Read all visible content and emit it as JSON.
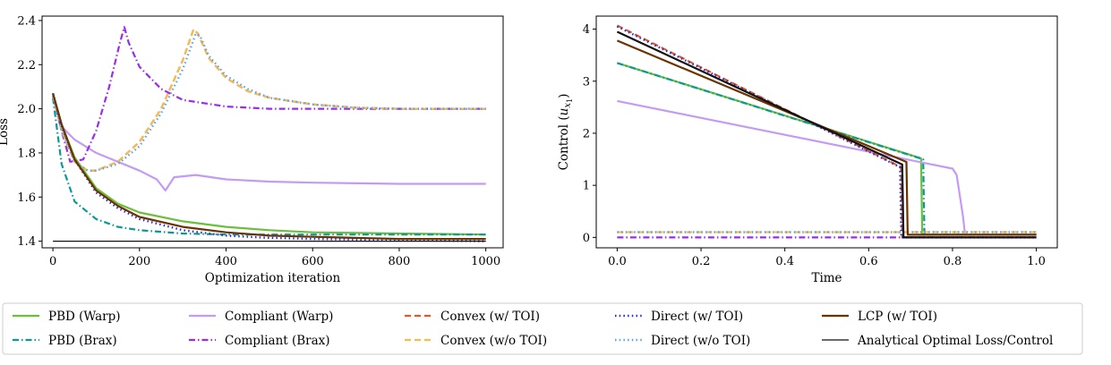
{
  "chart_data": [
    {
      "type": "line",
      "title": "",
      "xlabel": "Optimization iteration",
      "ylabel": "Loss",
      "xlim": [
        -25,
        1040
      ],
      "ylim": [
        1.37,
        2.42
      ],
      "xticks": [
        0,
        200,
        400,
        600,
        800,
        1000
      ],
      "yticks": [
        1.4,
        1.6,
        1.8,
        2.0,
        2.2,
        2.4
      ],
      "xtick_labels": [
        "0",
        "200",
        "400",
        "600",
        "800",
        "1000"
      ],
      "ytick_labels": [
        "1.4",
        "1.6",
        "1.8",
        "2.0",
        "2.2",
        "2.4"
      ],
      "series": [
        {
          "name": "PBD (Warp)",
          "color": "#6bbf3a",
          "style": "solid",
          "x": [
            0,
            20,
            50,
            100,
            150,
            200,
            300,
            400,
            500,
            600,
            800,
            1000
          ],
          "y": [
            2.07,
            1.93,
            1.78,
            1.64,
            1.57,
            1.53,
            1.49,
            1.465,
            1.45,
            1.44,
            1.435,
            1.43
          ]
        },
        {
          "name": "PBD (Brax)",
          "color": "#0a9a96",
          "style": "dashdot",
          "x": [
            0,
            20,
            50,
            100,
            150,
            200,
            300,
            400,
            600,
            800,
            1000
          ],
          "y": [
            2.05,
            1.75,
            1.58,
            1.5,
            1.465,
            1.45,
            1.435,
            1.43,
            1.43,
            1.43,
            1.43
          ]
        },
        {
          "name": "Compliant (Warp)",
          "color": "#c39bf5",
          "style": "solid",
          "x": [
            0,
            20,
            50,
            100,
            150,
            200,
            240,
            260,
            280,
            330,
            400,
            500,
            600,
            800,
            1000
          ],
          "y": [
            2.07,
            1.92,
            1.86,
            1.8,
            1.76,
            1.72,
            1.68,
            1.63,
            1.69,
            1.7,
            1.68,
            1.67,
            1.665,
            1.66,
            1.66
          ]
        },
        {
          "name": "Compliant (Brax)",
          "color": "#9a2ee8",
          "style": "dashdot",
          "x": [
            0,
            20,
            40,
            70,
            100,
            130,
            155,
            165,
            175,
            200,
            250,
            300,
            400,
            500,
            600,
            800,
            1000
          ],
          "y": [
            2.06,
            1.9,
            1.76,
            1.77,
            1.9,
            2.1,
            2.3,
            2.37,
            2.3,
            2.19,
            2.09,
            2.04,
            2.01,
            2.0,
            2.0,
            2.0,
            2.0
          ]
        },
        {
          "name": "Convex (w/ TOI)",
          "color": "#e05a28",
          "style": "dashed",
          "x": [
            0,
            20,
            50,
            80,
            100,
            150,
            200,
            250,
            300,
            325,
            335,
            360,
            400,
            450,
            500,
            600,
            700,
            800,
            1000
          ],
          "y": [
            2.06,
            1.9,
            1.76,
            1.72,
            1.72,
            1.76,
            1.85,
            2.0,
            2.22,
            2.36,
            2.34,
            2.23,
            2.14,
            2.08,
            2.05,
            2.02,
            2.005,
            2.0,
            2.0
          ]
        },
        {
          "name": "Convex (w/o TOI)",
          "color": "#f6bd4e",
          "style": "dashed",
          "x": [
            0,
            20,
            50,
            80,
            100,
            150,
            200,
            250,
            300,
            325,
            335,
            360,
            400,
            450,
            500,
            600,
            700,
            800,
            1000
          ],
          "y": [
            2.06,
            1.9,
            1.76,
            1.72,
            1.72,
            1.76,
            1.85,
            2.0,
            2.22,
            2.36,
            2.34,
            2.23,
            2.14,
            2.08,
            2.05,
            2.02,
            2.005,
            2.0,
            2.0
          ]
        },
        {
          "name": "Direct (w/ TOI)",
          "color": "#2b2bd6",
          "style": "dotted",
          "x": [
            0,
            20,
            50,
            100,
            150,
            200,
            300,
            400,
            500,
            600,
            800,
            1000
          ],
          "y": [
            2.07,
            1.92,
            1.77,
            1.62,
            1.55,
            1.5,
            1.45,
            1.425,
            1.415,
            1.41,
            1.405,
            1.4
          ]
        },
        {
          "name": "Direct (w/o TOI)",
          "color": "#5aa3e8",
          "style": "dotted",
          "x": [
            0,
            20,
            50,
            80,
            100,
            150,
            200,
            250,
            300,
            330,
            340,
            360,
            400,
            450,
            500,
            600,
            700,
            800,
            1000
          ],
          "y": [
            2.06,
            1.9,
            1.76,
            1.72,
            1.72,
            1.75,
            1.83,
            1.98,
            2.18,
            2.34,
            2.33,
            2.24,
            2.15,
            2.09,
            2.05,
            2.02,
            2.005,
            2.0,
            2.0
          ]
        },
        {
          "name": "LCP (w/ TOI)",
          "color": "#6b3300",
          "style": "solid",
          "x": [
            0,
            20,
            50,
            100,
            150,
            200,
            300,
            400,
            500,
            600,
            800,
            1000
          ],
          "y": [
            2.07,
            1.93,
            1.77,
            1.63,
            1.56,
            1.51,
            1.465,
            1.44,
            1.425,
            1.42,
            1.41,
            1.41
          ]
        },
        {
          "name": "Analytical Optimal Loss/Control",
          "color": "#111111",
          "style": "thin",
          "x": [
            0,
            1000
          ],
          "y": [
            1.4,
            1.4
          ]
        }
      ]
    },
    {
      "type": "line",
      "title": "",
      "xlabel": "Time",
      "ylabel": "Control (",
      "ylabel_symbol": "u",
      "ylabel_sub": "x",
      "ylabel_subsub": "1",
      "ylabel_close": ")",
      "xlim": [
        -0.05,
        1.05
      ],
      "ylim": [
        -0.2,
        4.25
      ],
      "xticks": [
        0.0,
        0.2,
        0.4,
        0.6,
        0.8,
        1.0
      ],
      "yticks": [
        0,
        1,
        2,
        3,
        4
      ],
      "xtick_labels": [
        "0.0",
        "0.2",
        "0.4",
        "0.6",
        "0.8",
        "1.0"
      ],
      "ytick_labels": [
        "0",
        "1",
        "2",
        "3",
        "4"
      ],
      "series": [
        {
          "name": "PBD (Warp)",
          "color": "#6bbf3a",
          "style": "solid",
          "x": [
            0,
            0.725,
            0.728,
            1.0
          ],
          "y": [
            3.35,
            1.52,
            0.05,
            0.05
          ]
        },
        {
          "name": "PBD (Brax)",
          "color": "#0a9a96",
          "style": "dashdot",
          "x": [
            0,
            0.73,
            0.733,
            1.0
          ],
          "y": [
            3.35,
            1.5,
            0.05,
            0.05
          ]
        },
        {
          "name": "Compliant (Warp)",
          "color": "#c39bf5",
          "style": "solid",
          "x": [
            0,
            0.8,
            0.81,
            0.825,
            0.83,
            1.0
          ],
          "y": [
            2.62,
            1.32,
            1.2,
            0.4,
            0.05,
            0.05
          ]
        },
        {
          "name": "Compliant (Brax)",
          "color": "#9a2ee8",
          "style": "dashdot",
          "x": [
            0,
            1.0
          ],
          "y": [
            0.0,
            0.0
          ]
        },
        {
          "name": "Convex (w/ TOI)",
          "color": "#e05a28",
          "style": "dashed",
          "x": [
            0,
            0.677,
            0.68,
            1.0
          ],
          "y": [
            4.07,
            1.35,
            0.0,
            0.0
          ]
        },
        {
          "name": "Convex (w/o TOI)",
          "color": "#f6bd4e",
          "style": "dashed",
          "x": [
            0,
            1.0
          ],
          "y": [
            0.1,
            0.1
          ]
        },
        {
          "name": "Direct (w/ TOI)",
          "color": "#2b2bd6",
          "style": "dotted",
          "x": [
            0,
            0.675,
            0.678,
            1.0
          ],
          "y": [
            4.05,
            1.35,
            0.0,
            0.0
          ]
        },
        {
          "name": "Direct (w/o TOI)",
          "color": "#5aa3e8",
          "style": "dotted",
          "x": [
            0,
            1.0
          ],
          "y": [
            0.1,
            0.1
          ]
        },
        {
          "name": "LCP (w/ TOI)",
          "color": "#6b3300",
          "style": "solid",
          "x": [
            0,
            0.69,
            0.693,
            1.0
          ],
          "y": [
            3.78,
            1.45,
            0.05,
            0.05
          ]
        },
        {
          "name": "Analytical Optimal Loss/Control",
          "color": "#111111",
          "style": "solid",
          "x": [
            0,
            0.68,
            0.683,
            1.0
          ],
          "y": [
            3.95,
            1.4,
            0.0,
            0.0
          ]
        }
      ]
    }
  ],
  "legend": {
    "placement": "bottom",
    "items": [
      {
        "label": "PBD (Warp)",
        "color": "#6bbf3a",
        "style": "solid"
      },
      {
        "label": "PBD (Brax)",
        "color": "#0a9a96",
        "style": "dashdot"
      },
      {
        "label": "Compliant (Warp)",
        "color": "#c39bf5",
        "style": "solid"
      },
      {
        "label": "Compliant (Brax)",
        "color": "#9a2ee8",
        "style": "dashdot"
      },
      {
        "label": "Convex (w/ TOI)",
        "color": "#e05a28",
        "style": "dashed"
      },
      {
        "label": "Convex (w/o TOI)",
        "color": "#f6bd4e",
        "style": "dashed"
      },
      {
        "label": "Direct (w/ TOI)",
        "color": "#2b2bd6",
        "style": "dotted"
      },
      {
        "label": "Direct (w/o TOI)",
        "color": "#5aa3e8",
        "style": "dotted"
      },
      {
        "label": "LCP (w/ TOI)",
        "color": "#6b3300",
        "style": "solid"
      },
      {
        "label": "Analytical Optimal Loss/Control",
        "color": "#111111",
        "style": "thin"
      }
    ]
  }
}
